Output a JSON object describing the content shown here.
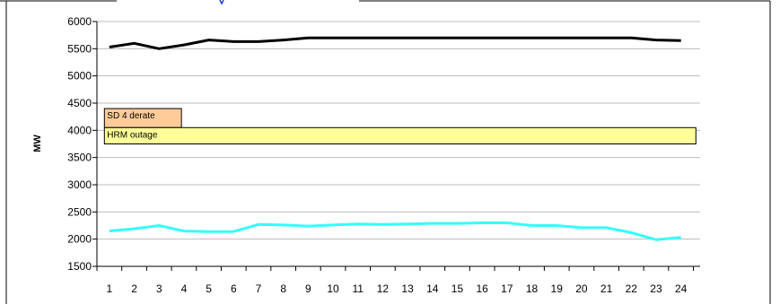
{
  "chart_data": {
    "type": "line",
    "title": "",
    "xlabel": "",
    "ylabel": "MW",
    "x": [
      1,
      2,
      3,
      4,
      5,
      6,
      7,
      8,
      9,
      10,
      11,
      12,
      13,
      14,
      15,
      16,
      17,
      18,
      19,
      20,
      21,
      22,
      23,
      24
    ],
    "ylim": [
      1500,
      6000
    ],
    "yticks": [
      1500,
      2000,
      2500,
      3000,
      3500,
      4000,
      4500,
      5000,
      5500,
      6000
    ],
    "grid": true,
    "legend": "none",
    "series": [
      {
        "color": "#000000",
        "values": [
          5530,
          5600,
          5500,
          5570,
          5660,
          5630,
          5630,
          5660,
          5700,
          5700,
          5700,
          5700,
          5700,
          5700,
          5700,
          5700,
          5700,
          5700,
          5700,
          5700,
          5700,
          5700,
          5660,
          5650
        ]
      },
      {
        "color": "#33ffff",
        "values": [
          2150,
          2190,
          2250,
          2150,
          2140,
          2140,
          2270,
          2260,
          2240,
          2260,
          2280,
          2270,
          2280,
          2290,
          2290,
          2300,
          2300,
          2250,
          2250,
          2210,
          2210,
          2120,
          1990,
          2030
        ]
      }
    ],
    "annotations": [
      {
        "label": "SD 4 derate",
        "color": "#ffcc99",
        "y_range": [
          4050,
          4400
        ],
        "x_range": [
          0.8,
          3.9
        ]
      },
      {
        "label": "HRM  outage",
        "color": "#ffff99",
        "y_range": [
          3750,
          4050
        ],
        "x_range": [
          0.8,
          24.6
        ]
      }
    ]
  }
}
